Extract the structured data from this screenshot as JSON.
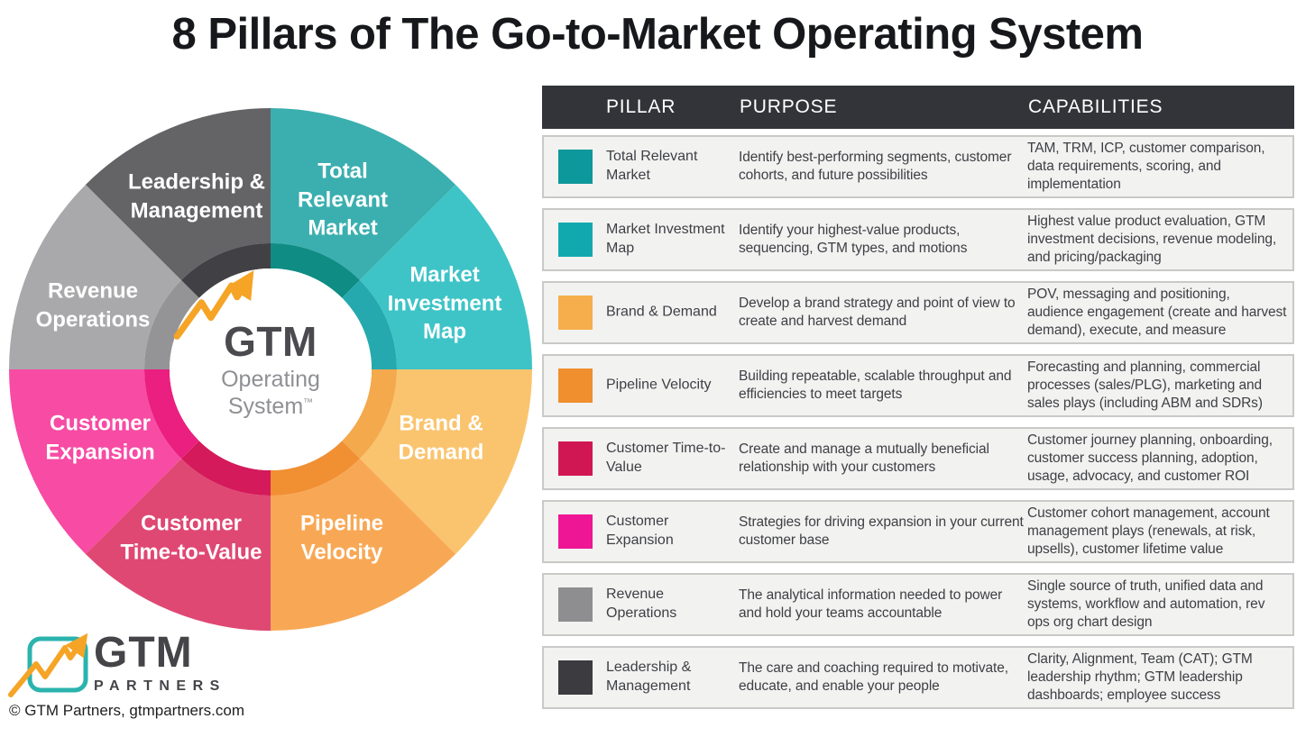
{
  "title": "8 Pillars of The Go-to-Market Operating System",
  "wheel": {
    "center": {
      "brand": "GTM",
      "line1": "Operating",
      "line2": "System",
      "tm": "™",
      "arrow_color": "#F5A426"
    },
    "segments": [
      {
        "label": "Total Relevant Market",
        "color": "#3BAFAF",
        "inner_color": "#0F8C84"
      },
      {
        "label": "Market Investment Map",
        "color": "#3EC4C7",
        "inner_color": "#26A9AE"
      },
      {
        "label": "Brand & Demand",
        "color": "#FAC46E",
        "inner_color": "#F4A94C"
      },
      {
        "label": "Pipeline Velocity",
        "color": "#F8A855",
        "inner_color": "#F18F33"
      },
      {
        "label": "Customer Time-to-Value",
        "color": "#DF4873",
        "inner_color": "#D41A5B"
      },
      {
        "label": "Customer Expansion",
        "color": "#F74BA4",
        "inner_color": "#EA1F80"
      },
      {
        "label": "Revenue Operations",
        "color": "#A9A9AB",
        "inner_color": "#949497"
      },
      {
        "label": "Leadership & Management",
        "color": "#646467",
        "inner_color": "#414145"
      }
    ]
  },
  "table": {
    "headers": [
      "PILLAR",
      "PURPOSE",
      "CAPABILITIES"
    ],
    "header_bg": "#323439",
    "rows": [
      {
        "pillar": "Total Relevant Market",
        "color": "#0D989B",
        "purpose": "Identify best-performing segments, customer cohorts, and future possibilities",
        "capabilities": "TAM, TRM, ICP, customer comparison, data requirements, scoring, and implementation"
      },
      {
        "pillar": "Market Investment Map",
        "color": "#12A9AE",
        "purpose": "Identify your highest-value products, sequencing, GTM types, and motions",
        "capabilities": "Highest value product evaluation, GTM investment decisions, revenue modeling, and pricing/packaging"
      },
      {
        "pillar": "Brand & Demand",
        "color": "#F6AE4C",
        "purpose": "Develop a brand strategy and point of view to create and harvest demand",
        "capabilities": "POV, messaging and positioning, audience engagement (create and harvest demand), execute, and measure"
      },
      {
        "pillar": "Pipeline Velocity",
        "color": "#EF8F2D",
        "purpose": "Building repeatable, scalable throughput and efficiencies to meet targets",
        "capabilities": "Forecasting and planning, commercial processes (sales/PLG), marketing and sales plays (including ABM and SDRs)"
      },
      {
        "pillar": "Customer Time-to-Value",
        "color": "#D11753",
        "purpose": "Create and manage a mutually beneficial relationship with your customers",
        "capabilities": "Customer journey planning, onboarding, customer success planning, adoption, usage, advocacy, and customer ROI"
      },
      {
        "pillar": "Customer Expansion",
        "color": "#EE1694",
        "purpose": "Strategies for driving expansion in your current customer base",
        "capabilities": "Customer cohort management, account management plays (renewals, at risk, upsells), customer lifetime value"
      },
      {
        "pillar": "Revenue Operations",
        "color": "#8E8E91",
        "purpose": "The analytical information needed to power and hold your teams accountable",
        "capabilities": "Single source of truth, unified data and systems, workflow and automation, rev ops org chart design"
      },
      {
        "pillar": "Leadership & Management",
        "color": "#3B3B40",
        "purpose": "The care and coaching required to motivate, educate, and enable your people",
        "capabilities": "Clarity, Alignment, Team (CAT); GTM leadership rhythm; GTM leadership dashboards; employee success"
      }
    ]
  },
  "footer": {
    "brand": "GTM",
    "brand_sub": "PARTNERS",
    "copyright": "© GTM Partners, gtmpartners.com"
  }
}
